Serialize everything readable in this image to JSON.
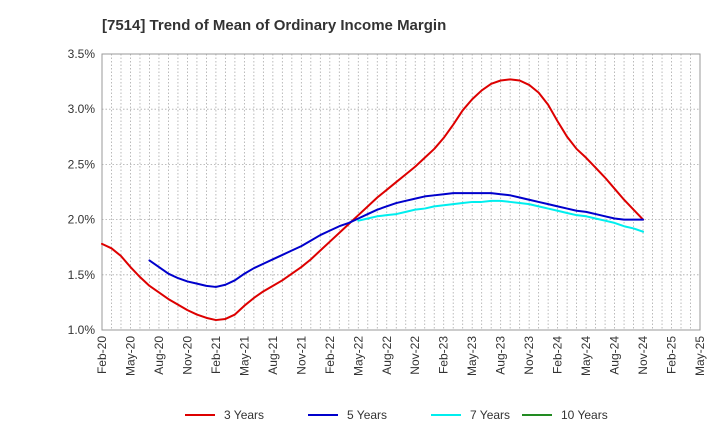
{
  "chart_data": {
    "type": "line",
    "title": "[7514]  Trend of Mean of Ordinary Income Margin",
    "xlabel": "",
    "ylabel": "",
    "x_tick_labels": [
      "Feb-20",
      "May-20",
      "Aug-20",
      "Nov-20",
      "Feb-21",
      "May-21",
      "Aug-21",
      "Nov-21",
      "Feb-22",
      "May-22",
      "Aug-22",
      "Nov-22",
      "Feb-23",
      "May-23",
      "Aug-23",
      "Nov-23",
      "Feb-24",
      "May-24",
      "Aug-24",
      "Nov-24",
      "Feb-25",
      "May-25"
    ],
    "y_tick_labels": [
      "1.0%",
      "1.5%",
      "2.0%",
      "2.5%",
      "3.0%",
      "3.5%"
    ],
    "ylim": [
      1.0,
      3.5
    ],
    "y_unit": "%",
    "grid": true,
    "legend_position": "bottom",
    "series": [
      {
        "name": "3 Years",
        "color": "#dd0000",
        "points": [
          [
            "2020-02",
            1.78
          ],
          [
            "2020-03",
            1.74
          ],
          [
            "2020-04",
            1.67
          ],
          [
            "2020-05",
            1.57
          ],
          [
            "2020-06",
            1.48
          ],
          [
            "2020-07",
            1.4
          ],
          [
            "2020-08",
            1.34
          ],
          [
            "2020-09",
            1.28
          ],
          [
            "2020-10",
            1.23
          ],
          [
            "2020-11",
            1.18
          ],
          [
            "2020-12",
            1.14
          ],
          [
            "2021-01",
            1.11
          ],
          [
            "2021-02",
            1.09
          ],
          [
            "2021-03",
            1.1
          ],
          [
            "2021-04",
            1.14
          ],
          [
            "2021-05",
            1.22
          ],
          [
            "2021-06",
            1.29
          ],
          [
            "2021-07",
            1.35
          ],
          [
            "2021-08",
            1.4
          ],
          [
            "2021-09",
            1.45
          ],
          [
            "2021-10",
            1.51
          ],
          [
            "2021-11",
            1.57
          ],
          [
            "2021-12",
            1.64
          ],
          [
            "2022-01",
            1.72
          ],
          [
            "2022-02",
            1.8
          ],
          [
            "2022-03",
            1.88
          ],
          [
            "2022-04",
            1.96
          ],
          [
            "2022-05",
            2.04
          ],
          [
            "2022-06",
            2.12
          ],
          [
            "2022-07",
            2.2
          ],
          [
            "2022-08",
            2.27
          ],
          [
            "2022-09",
            2.34
          ],
          [
            "2022-10",
            2.41
          ],
          [
            "2022-11",
            2.48
          ],
          [
            "2022-12",
            2.56
          ],
          [
            "2023-01",
            2.64
          ],
          [
            "2023-02",
            2.74
          ],
          [
            "2023-03",
            2.86
          ],
          [
            "2023-04",
            2.99
          ],
          [
            "2023-05",
            3.09
          ],
          [
            "2023-06",
            3.17
          ],
          [
            "2023-07",
            3.23
          ],
          [
            "2023-08",
            3.26
          ],
          [
            "2023-09",
            3.27
          ],
          [
            "2023-10",
            3.26
          ],
          [
            "2023-11",
            3.22
          ],
          [
            "2023-12",
            3.15
          ],
          [
            "2024-01",
            3.04
          ],
          [
            "2024-02",
            2.89
          ],
          [
            "2024-03",
            2.75
          ],
          [
            "2024-04",
            2.64
          ],
          [
            "2024-05",
            2.56
          ],
          [
            "2024-06",
            2.47
          ],
          [
            "2024-07",
            2.38
          ],
          [
            "2024-08",
            2.28
          ],
          [
            "2024-09",
            2.18
          ],
          [
            "2024-10",
            2.09
          ],
          [
            "2024-11",
            2.0
          ]
        ]
      },
      {
        "name": "5 Years",
        "color": "#0000cc",
        "points": [
          [
            "2020-07",
            1.63
          ],
          [
            "2020-08",
            1.57
          ],
          [
            "2020-09",
            1.51
          ],
          [
            "2020-10",
            1.47
          ],
          [
            "2020-11",
            1.44
          ],
          [
            "2020-12",
            1.42
          ],
          [
            "2021-01",
            1.4
          ],
          [
            "2021-02",
            1.39
          ],
          [
            "2021-03",
            1.41
          ],
          [
            "2021-04",
            1.45
          ],
          [
            "2021-05",
            1.51
          ],
          [
            "2021-06",
            1.56
          ],
          [
            "2021-07",
            1.6
          ],
          [
            "2021-08",
            1.64
          ],
          [
            "2021-09",
            1.68
          ],
          [
            "2021-10",
            1.72
          ],
          [
            "2021-11",
            1.76
          ],
          [
            "2021-12",
            1.81
          ],
          [
            "2022-01",
            1.86
          ],
          [
            "2022-02",
            1.9
          ],
          [
            "2022-03",
            1.94
          ],
          [
            "2022-04",
            1.97
          ],
          [
            "2022-05",
            2.01
          ],
          [
            "2022-06",
            2.05
          ],
          [
            "2022-07",
            2.09
          ],
          [
            "2022-08",
            2.12
          ],
          [
            "2022-09",
            2.15
          ],
          [
            "2022-10",
            2.17
          ],
          [
            "2022-11",
            2.19
          ],
          [
            "2022-12",
            2.21
          ],
          [
            "2023-01",
            2.22
          ],
          [
            "2023-02",
            2.23
          ],
          [
            "2023-03",
            2.24
          ],
          [
            "2023-04",
            2.24
          ],
          [
            "2023-05",
            2.24
          ],
          [
            "2023-06",
            2.24
          ],
          [
            "2023-07",
            2.24
          ],
          [
            "2023-08",
            2.23
          ],
          [
            "2023-09",
            2.22
          ],
          [
            "2023-10",
            2.2
          ],
          [
            "2023-11",
            2.18
          ],
          [
            "2023-12",
            2.16
          ],
          [
            "2024-01",
            2.14
          ],
          [
            "2024-02",
            2.12
          ],
          [
            "2024-03",
            2.1
          ],
          [
            "2024-04",
            2.08
          ],
          [
            "2024-05",
            2.07
          ],
          [
            "2024-06",
            2.05
          ],
          [
            "2024-07",
            2.03
          ],
          [
            "2024-08",
            2.01
          ],
          [
            "2024-09",
            2.0
          ],
          [
            "2024-10",
            2.0
          ],
          [
            "2024-11",
            2.0
          ]
        ]
      },
      {
        "name": "7 Years",
        "color": "#00eeee",
        "points": [
          [
            "2022-05",
            1.99
          ],
          [
            "2022-06",
            2.01
          ],
          [
            "2022-07",
            2.03
          ],
          [
            "2022-08",
            2.04
          ],
          [
            "2022-09",
            2.05
          ],
          [
            "2022-10",
            2.07
          ],
          [
            "2022-11",
            2.09
          ],
          [
            "2022-12",
            2.1
          ],
          [
            "2023-01",
            2.12
          ],
          [
            "2023-02",
            2.13
          ],
          [
            "2023-03",
            2.14
          ],
          [
            "2023-04",
            2.15
          ],
          [
            "2023-05",
            2.16
          ],
          [
            "2023-06",
            2.16
          ],
          [
            "2023-07",
            2.17
          ],
          [
            "2023-08",
            2.17
          ],
          [
            "2023-09",
            2.16
          ],
          [
            "2023-10",
            2.15
          ],
          [
            "2023-11",
            2.14
          ],
          [
            "2023-12",
            2.12
          ],
          [
            "2024-01",
            2.1
          ],
          [
            "2024-02",
            2.08
          ],
          [
            "2024-03",
            2.06
          ],
          [
            "2024-04",
            2.04
          ],
          [
            "2024-05",
            2.03
          ],
          [
            "2024-06",
            2.01
          ],
          [
            "2024-07",
            1.99
          ],
          [
            "2024-08",
            1.97
          ],
          [
            "2024-09",
            1.94
          ],
          [
            "2024-10",
            1.92
          ],
          [
            "2024-11",
            1.89
          ]
        ]
      },
      {
        "name": "10 Years",
        "color": "#228b22",
        "points": []
      }
    ]
  }
}
